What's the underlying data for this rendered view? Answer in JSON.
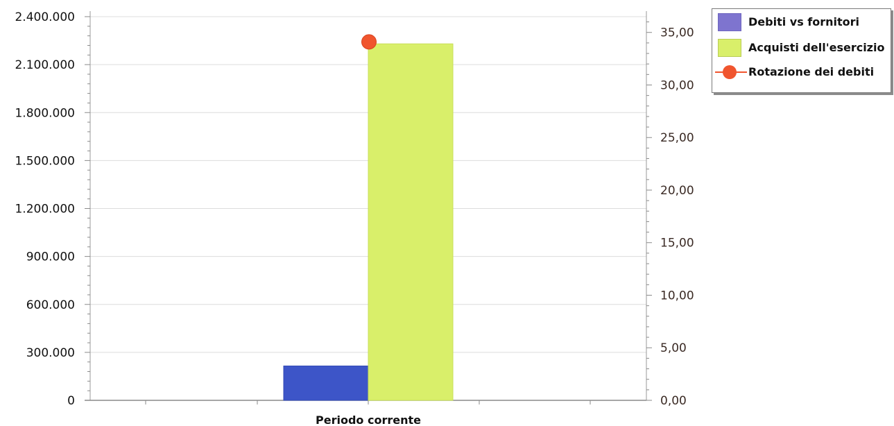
{
  "chart_data": {
    "type": "bar",
    "categories": [
      "Periodo corrente"
    ],
    "series": [
      {
        "name": "Debiti vs fornitori",
        "kind": "bar",
        "axis": "left",
        "values": [
          215000
        ],
        "color": "#3d55c8"
      },
      {
        "name": "Acquisti dell'esercizio",
        "kind": "bar",
        "axis": "left",
        "values": [
          2230000
        ],
        "color": "#d9ef6a"
      },
      {
        "name": "Rotazione dei debiti",
        "kind": "marker",
        "axis": "right",
        "values": [
          34.1
        ],
        "color": "#f0552e"
      }
    ],
    "y_left": {
      "range": [
        0,
        2400000
      ],
      "ticks": [
        0,
        300000,
        600000,
        900000,
        1200000,
        1500000,
        1800000,
        2100000,
        2400000
      ],
      "tick_labels": [
        "0",
        "300.000",
        "600.000",
        "900.000",
        "1.200.000",
        "1.500.000",
        "1.800.000",
        "2.100.000",
        "2.400.000"
      ]
    },
    "y_right": {
      "range": [
        0,
        36.5
      ],
      "ticks": [
        0,
        5,
        10,
        15,
        20,
        25,
        30,
        35
      ],
      "tick_labels": [
        "0,00",
        "5,00",
        "10,00",
        "15,00",
        "20,00",
        "25,00",
        "30,00",
        "35,00"
      ]
    },
    "grid": true,
    "legend": {
      "position": "top-right"
    },
    "title": "",
    "xlabel": "",
    "ylabel": ""
  }
}
